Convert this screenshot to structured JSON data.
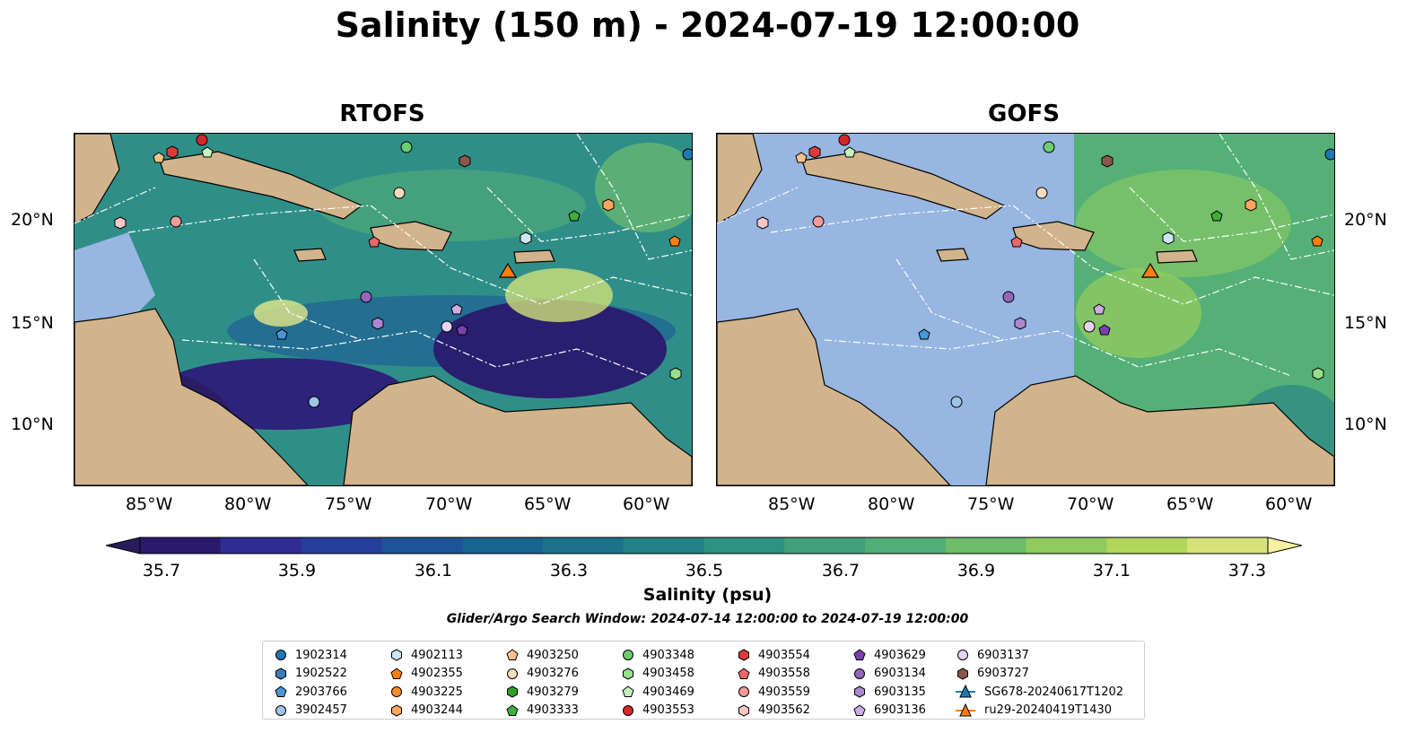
{
  "title": "Salinity (150 m) - 2024-07-19 12:00:00",
  "panels": [
    {
      "name": "RTOFS"
    },
    {
      "name": "GOFS"
    }
  ],
  "lon_ticks": [
    "85°W",
    "80°W",
    "75°W",
    "70°W",
    "65°W",
    "60°W"
  ],
  "lat_ticks": [
    "20°N",
    "15°N",
    "10°N"
  ],
  "colorbar": {
    "label": "Salinity (psu)",
    "ticks": [
      "35.7",
      "35.9",
      "36.1",
      "36.3",
      "36.5",
      "36.7",
      "36.9",
      "37.1",
      "37.3"
    ],
    "colors": [
      "#2b1a6b",
      "#2f2d92",
      "#263f9a",
      "#1d5497",
      "#176490",
      "#1a738b",
      "#238286",
      "#2f9181",
      "#41a07b",
      "#52ad78",
      "#6dbd6a",
      "#8fcb5f",
      "#b2d65a",
      "#d8e27a"
    ],
    "under_color": "#281d5a",
    "over_color": "#f7f0a0"
  },
  "search_window": "Glider/Argo Search Window: 2024-07-14 12:00:00 to 2024-07-19 12:00:00",
  "legend": [
    {
      "label": "1902314",
      "marker": "circle",
      "color": "#1f77b4"
    },
    {
      "label": "1902522",
      "marker": "hexagon",
      "color": "#3b7dbd"
    },
    {
      "label": "2903766",
      "marker": "pentagon",
      "color": "#4a97d6"
    },
    {
      "label": "3902457",
      "marker": "circle",
      "color": "#9ec5e8"
    },
    {
      "label": "4902113",
      "marker": "hexagon",
      "color": "#cde6f7"
    },
    {
      "label": "4902355",
      "marker": "pentagon",
      "color": "#ff7f0e"
    },
    {
      "label": "4903225",
      "marker": "circle",
      "color": "#ff8c2a"
    },
    {
      "label": "4903244",
      "marker": "hexagon",
      "color": "#ffa65c"
    },
    {
      "label": "4903250",
      "marker": "pentagon",
      "color": "#ffc28a"
    },
    {
      "label": "4903276",
      "marker": "circle",
      "color": "#ffdcbc"
    },
    {
      "label": "4903279",
      "marker": "hexagon",
      "color": "#2ca02c"
    },
    {
      "label": "4903333",
      "marker": "pentagon",
      "color": "#3dae3d"
    },
    {
      "label": "4903348",
      "marker": "circle",
      "color": "#6fcc6f"
    },
    {
      "label": "4903458",
      "marker": "hexagon",
      "color": "#98df8a"
    },
    {
      "label": "4903469",
      "marker": "pentagon",
      "color": "#c7f2bc"
    },
    {
      "label": "4903553",
      "marker": "circle",
      "color": "#d62728"
    },
    {
      "label": "4903554",
      "marker": "hexagon",
      "color": "#dc3c3c"
    },
    {
      "label": "4903558",
      "marker": "pentagon",
      "color": "#e86868"
    },
    {
      "label": "4903559",
      "marker": "circle",
      "color": "#f49a9a"
    },
    {
      "label": "4903562",
      "marker": "hexagon",
      "color": "#f9c7c7"
    },
    {
      "label": "4903629",
      "marker": "pentagon",
      "color": "#7b3fb0"
    },
    {
      "label": "6903134",
      "marker": "circle",
      "color": "#9467bd"
    },
    {
      "label": "6903135",
      "marker": "hexagon",
      "color": "#ac88d0"
    },
    {
      "label": "6903136",
      "marker": "pentagon",
      "color": "#c9aee3"
    },
    {
      "label": "6903137",
      "marker": "circle",
      "color": "#e6d3f5"
    },
    {
      "label": "6903727",
      "marker": "hexagon",
      "color": "#8c564b"
    },
    {
      "label": "SG678-20240617T1202",
      "marker": "triangle-line",
      "color": "#1f77b4"
    },
    {
      "label": "ru29-20240419T1430",
      "marker": "triangle-line",
      "color": "#ff7f0e"
    }
  ],
  "colors": {
    "land": "#d2b48c",
    "shelf": "#97b6e2",
    "basin_rtofs": "#2a8a86",
    "basin_gofs": "#97b6e2",
    "eastern_gofs": "#55b078"
  }
}
